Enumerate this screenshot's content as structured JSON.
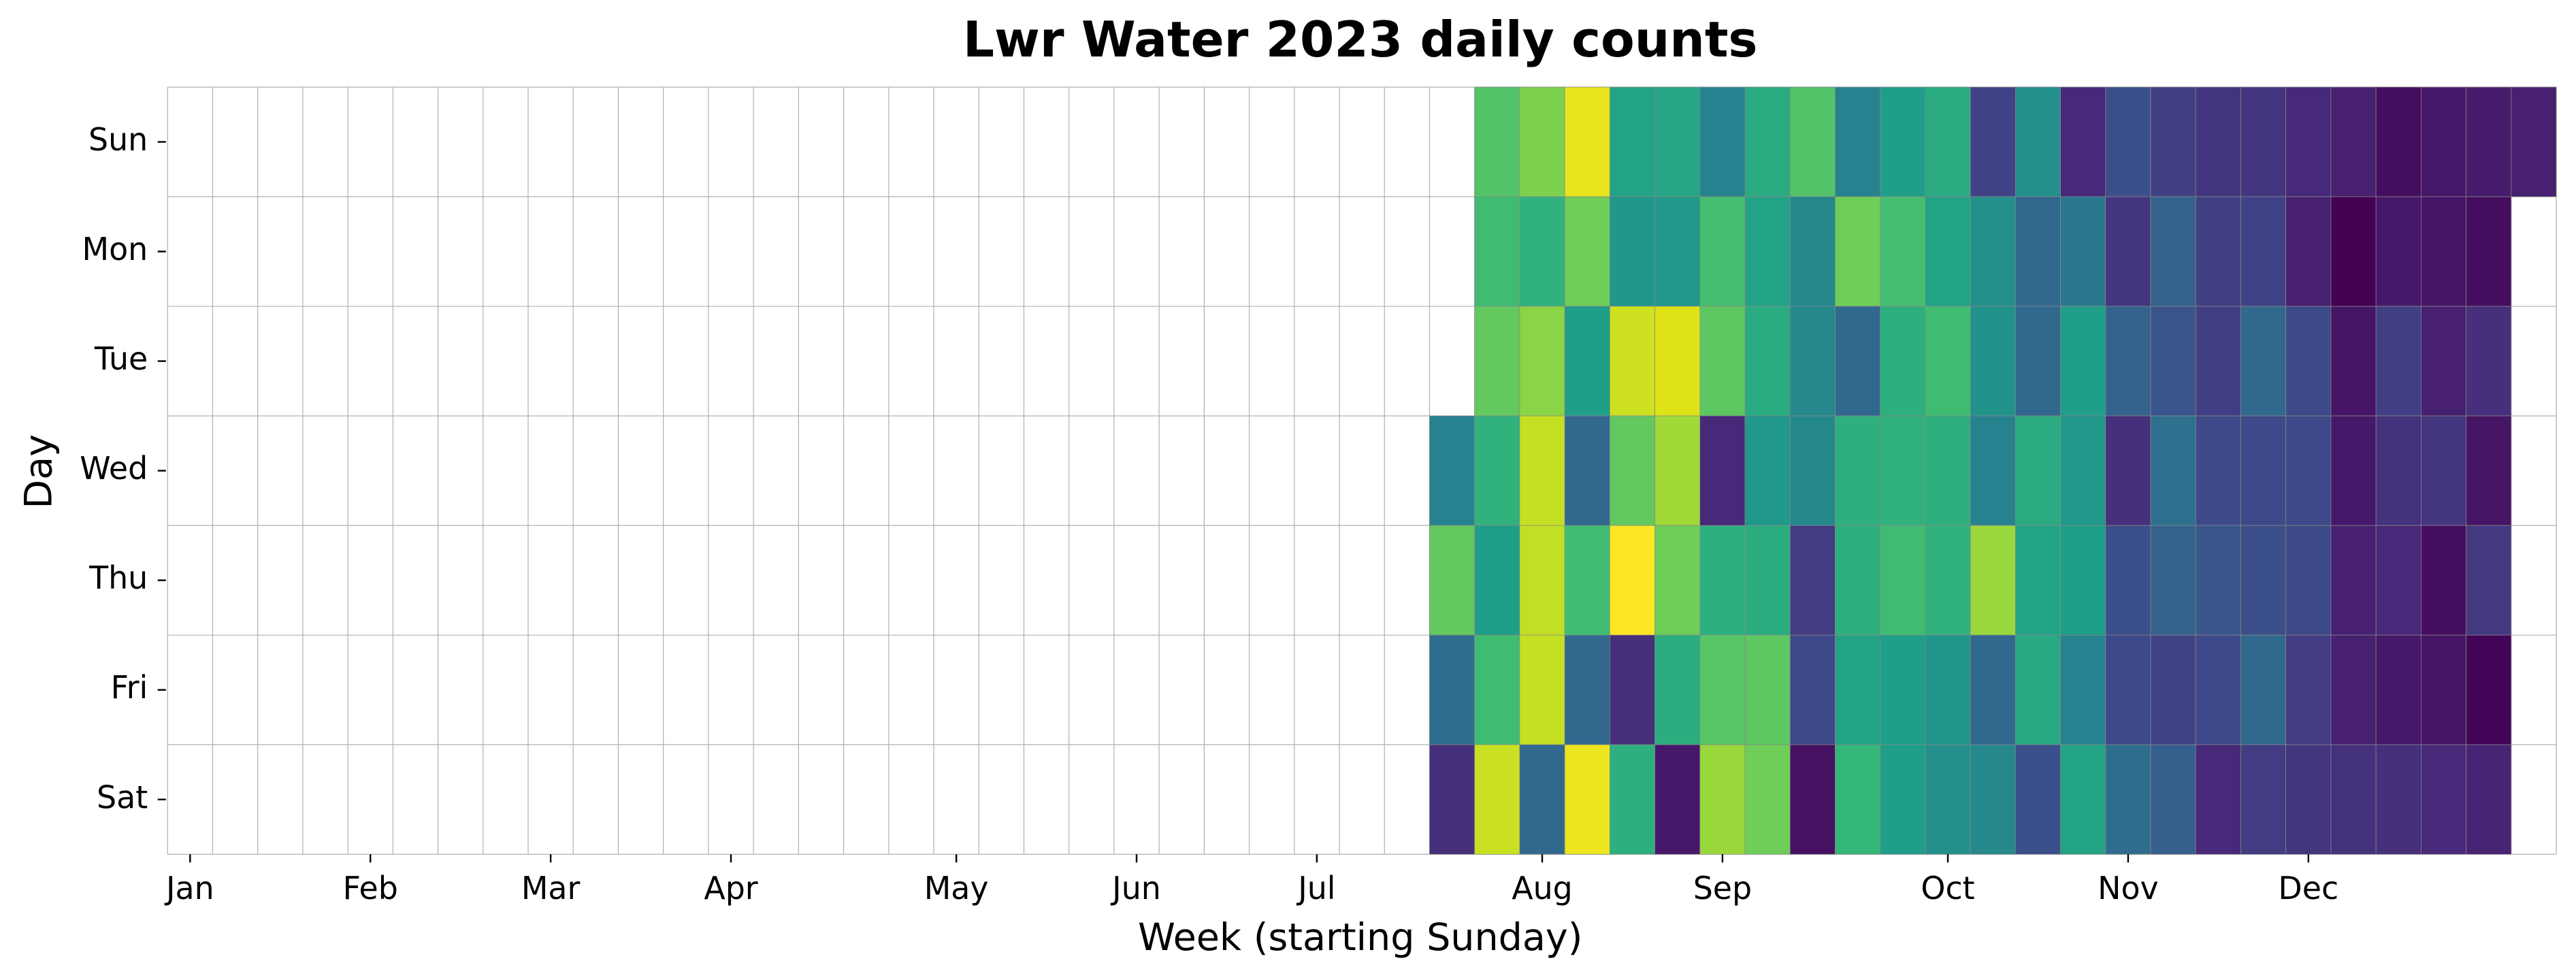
{
  "chart_data": {
    "type": "heatmap",
    "title": "Lwr Water 2023 daily counts",
    "x_label": "Week (starting Sunday)",
    "y_label": "Day",
    "colormap": "viridis",
    "categories": [
      "Jan",
      null,
      null,
      null,
      "Feb",
      null,
      null,
      null,
      "Mar",
      null,
      null,
      null,
      "Apr",
      null,
      null,
      null,
      null,
      "May",
      null,
      null,
      null,
      "Jun",
      null,
      null,
      null,
      "Jul",
      null,
      null,
      null,
      null,
      "Aug",
      null,
      null,
      null,
      "Sep",
      null,
      null,
      null,
      null,
      "Oct",
      null,
      null,
      null,
      "Nov",
      null,
      null,
      null,
      "Dec",
      null,
      null,
      null,
      null,
      null
    ],
    "rows": [
      "Sun",
      "Mon",
      "Tue",
      "Wed",
      "Thu",
      "Fri",
      "Sat"
    ],
    "values": [
      [
        null,
        null,
        null,
        null,
        null,
        null,
        null,
        null,
        null,
        null,
        null,
        null,
        null,
        null,
        null,
        null,
        null,
        null,
        null,
        null,
        null,
        null,
        null,
        null,
        null,
        null,
        null,
        null,
        null,
        65,
        72,
        93,
        52,
        53,
        40,
        55,
        65,
        40,
        50,
        55,
        18,
        45,
        10,
        22,
        17,
        14,
        14,
        10,
        8,
        3,
        6,
        7,
        8
      ],
      [
        null,
        null,
        null,
        null,
        null,
        null,
        null,
        null,
        null,
        null,
        null,
        null,
        null,
        null,
        null,
        null,
        null,
        null,
        null,
        null,
        null,
        null,
        null,
        null,
        null,
        null,
        null,
        null,
        null,
        62,
        58,
        70,
        47,
        48,
        63,
        52,
        42,
        70,
        63,
        52,
        45,
        30,
        36,
        14,
        28,
        17,
        18,
        8,
        0,
        6,
        5,
        3,
        null
      ],
      [
        null,
        null,
        null,
        null,
        null,
        null,
        null,
        null,
        null,
        null,
        null,
        null,
        null,
        null,
        null,
        null,
        null,
        null,
        null,
        null,
        null,
        null,
        null,
        null,
        null,
        null,
        null,
        null,
        null,
        68,
        74,
        50,
        86,
        90,
        67,
        55,
        42,
        30,
        57,
        62,
        46,
        30,
        50,
        28,
        24,
        17,
        30,
        20,
        5,
        17,
        8,
        12,
        null
      ],
      [
        null,
        null,
        null,
        null,
        null,
        null,
        null,
        null,
        null,
        null,
        null,
        null,
        null,
        null,
        null,
        null,
        null,
        null,
        null,
        null,
        null,
        null,
        null,
        null,
        null,
        null,
        null,
        null,
        40,
        58,
        84,
        30,
        68,
        77,
        10,
        48,
        42,
        57,
        58,
        57,
        40,
        55,
        48,
        12,
        33,
        20,
        20,
        20,
        6,
        13,
        14,
        5,
        null
      ],
      [
        null,
        null,
        null,
        null,
        null,
        null,
        null,
        null,
        null,
        null,
        null,
        null,
        null,
        null,
        null,
        null,
        null,
        null,
        null,
        null,
        null,
        null,
        null,
        null,
        null,
        null,
        null,
        null,
        68,
        50,
        83,
        62,
        100,
        70,
        57,
        56,
        16,
        57,
        62,
        58,
        76,
        52,
        50,
        22,
        28,
        24,
        22,
        20,
        8,
        10,
        3,
        15,
        null
      ],
      [
        null,
        null,
        null,
        null,
        null,
        null,
        null,
        null,
        null,
        null,
        null,
        null,
        null,
        null,
        null,
        null,
        null,
        null,
        null,
        null,
        null,
        null,
        null,
        null,
        null,
        null,
        null,
        null,
        32,
        62,
        84,
        30,
        12,
        56,
        66,
        67,
        20,
        52,
        50,
        47,
        30,
        54,
        40,
        20,
        18,
        20,
        30,
        16,
        8,
        6,
        5,
        1,
        null
      ],
      [
        null,
        null,
        null,
        null,
        null,
        null,
        null,
        null,
        null,
        null,
        null,
        null,
        null,
        null,
        null,
        null,
        null,
        null,
        null,
        null,
        null,
        null,
        null,
        null,
        null,
        null,
        null,
        null,
        12,
        85,
        30,
        95,
        57,
        6,
        76,
        70,
        4,
        60,
        50,
        45,
        42,
        22,
        52,
        32,
        27,
        10,
        16,
        14,
        13,
        12,
        10,
        9,
        null
      ]
    ]
  }
}
